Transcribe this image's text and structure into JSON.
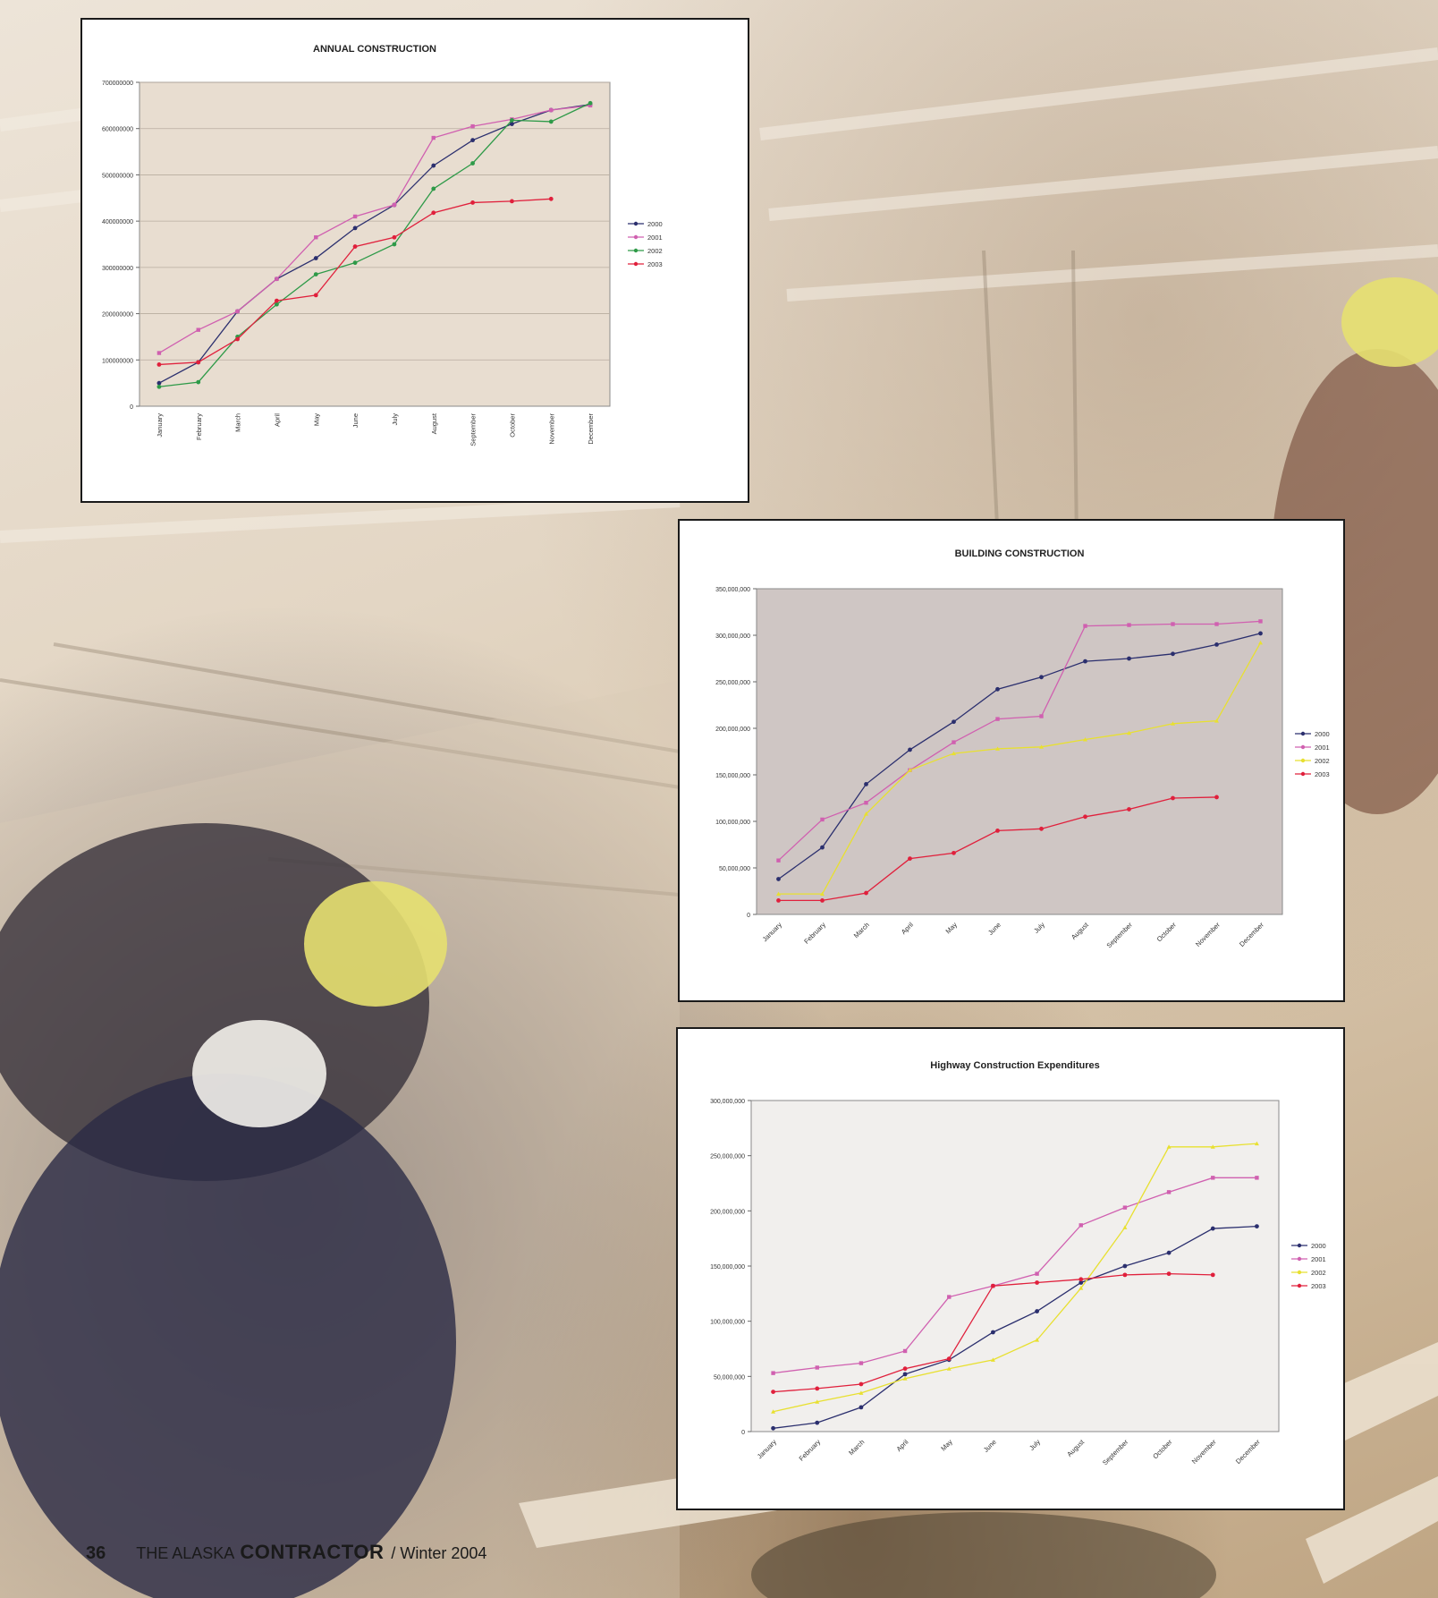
{
  "footer": {
    "page_number": "36",
    "publication_prefix": "THE ALASKA",
    "publication_name": "CONTRACTOR",
    "issue": "/ Winter 2004"
  },
  "colors": {
    "s2000": "#2b2f6e",
    "s2001": "#d060b0",
    "s2002_green": "#2e9a48",
    "s2002_yellow": "#e8e030",
    "s2003": "#e0203c"
  },
  "chart_data": [
    {
      "type": "line",
      "title": "ANNUAL CONSTRUCTION",
      "xlabel": "",
      "ylabel": "",
      "ylim": [
        0,
        700000000
      ],
      "yticks": [
        0,
        100000000,
        200000000,
        300000000,
        400000000,
        500000000,
        600000000,
        700000000
      ],
      "ytick_labels": [
        "0",
        "100000000",
        "200000000",
        "300000000",
        "400000000",
        "500000000",
        "600000000",
        "700000000"
      ],
      "grid": true,
      "legend": "right",
      "categories": [
        "January",
        "February",
        "March",
        "April",
        "May",
        "June",
        "July",
        "August",
        "September",
        "October",
        "November",
        "December"
      ],
      "series": [
        {
          "name": "2000",
          "color": "#2b2f6e",
          "values": [
            50000000,
            95000000,
            205000000,
            275000000,
            320000000,
            385000000,
            435000000,
            520000000,
            575000000,
            610000000,
            640000000,
            652000000
          ]
        },
        {
          "name": "2001",
          "color": "#d060b0",
          "values": [
            115000000,
            165000000,
            205000000,
            275000000,
            365000000,
            410000000,
            435000000,
            580000000,
            605000000,
            620000000,
            640000000,
            650000000
          ]
        },
        {
          "name": "2002",
          "color": "#2e9a48",
          "values": [
            42000000,
            52000000,
            150000000,
            220000000,
            285000000,
            310000000,
            350000000,
            470000000,
            525000000,
            618000000,
            615000000,
            655000000
          ]
        },
        {
          "name": "2003",
          "color": "#e0203c",
          "values": [
            90000000,
            95000000,
            145000000,
            228000000,
            240000000,
            345000000,
            365000000,
            418000000,
            440000000,
            443000000,
            448000000,
            null
          ]
        }
      ]
    },
    {
      "type": "line",
      "title": "BUILDING CONSTRUCTION",
      "xlabel": "",
      "ylabel": "",
      "ylim": [
        0,
        350000000
      ],
      "yticks": [
        0,
        50000000,
        100000000,
        150000000,
        200000000,
        250000000,
        300000000,
        350000000
      ],
      "ytick_labels": [
        "0",
        "50,000,000",
        "100,000,000",
        "150,000,000",
        "200,000,000",
        "250,000,000",
        "300,000,000",
        "350,000,000"
      ],
      "grid": false,
      "legend": "right",
      "categories": [
        "January",
        "February",
        "March",
        "April",
        "May",
        "June",
        "July",
        "August",
        "September",
        "October",
        "November",
        "December"
      ],
      "series": [
        {
          "name": "2000",
          "color": "#2b2f6e",
          "values": [
            38000000,
            72000000,
            140000000,
            177000000,
            207000000,
            242000000,
            255000000,
            272000000,
            275000000,
            280000000,
            290000000,
            302000000
          ]
        },
        {
          "name": "2001",
          "color": "#d060b0",
          "values": [
            58000000,
            102000000,
            120000000,
            155000000,
            185000000,
            210000000,
            213000000,
            310000000,
            311000000,
            312000000,
            312000000,
            315000000
          ]
        },
        {
          "name": "2002",
          "color": "#e8e030",
          "values": [
            22000000,
            22000000,
            108000000,
            155000000,
            173000000,
            178000000,
            180000000,
            188000000,
            195000000,
            205000000,
            208000000,
            292000000
          ]
        },
        {
          "name": "2003",
          "color": "#e0203c",
          "values": [
            15000000,
            15000000,
            23000000,
            60000000,
            66000000,
            90000000,
            92000000,
            105000000,
            113000000,
            125000000,
            126000000,
            null
          ]
        }
      ]
    },
    {
      "type": "line",
      "title": "Highway Construction Expenditures",
      "xlabel": "",
      "ylabel": "",
      "ylim": [
        0,
        300000000
      ],
      "yticks": [
        0,
        50000000,
        100000000,
        150000000,
        200000000,
        250000000,
        300000000
      ],
      "ytick_labels": [
        "0",
        "50,000,000",
        "100,000,000",
        "150,000,000",
        "200,000,000",
        "250,000,000",
        "300,000,000"
      ],
      "grid": false,
      "legend": "right",
      "categories": [
        "January",
        "February",
        "March",
        "April",
        "May",
        "June",
        "July",
        "August",
        "September",
        "October",
        "November",
        "December"
      ],
      "series": [
        {
          "name": "2000",
          "color": "#2b2f6e",
          "values": [
            3000000,
            8000000,
            22000000,
            52000000,
            65000000,
            90000000,
            109000000,
            135000000,
            150000000,
            162000000,
            184000000,
            186000000
          ]
        },
        {
          "name": "2001",
          "color": "#d060b0",
          "values": [
            53000000,
            58000000,
            62000000,
            73000000,
            122000000,
            132000000,
            143000000,
            187000000,
            203000000,
            217000000,
            230000000,
            230000000
          ]
        },
        {
          "name": "2002",
          "color": "#e8e030",
          "values": [
            18000000,
            27000000,
            35000000,
            48000000,
            57000000,
            65000000,
            83000000,
            130000000,
            185000000,
            258000000,
            258000000,
            261000000
          ]
        },
        {
          "name": "2003",
          "color": "#e0203c",
          "values": [
            36000000,
            39000000,
            43000000,
            57000000,
            66000000,
            132000000,
            135000000,
            138000000,
            142000000,
            143000000,
            142000000,
            null
          ]
        }
      ]
    }
  ]
}
